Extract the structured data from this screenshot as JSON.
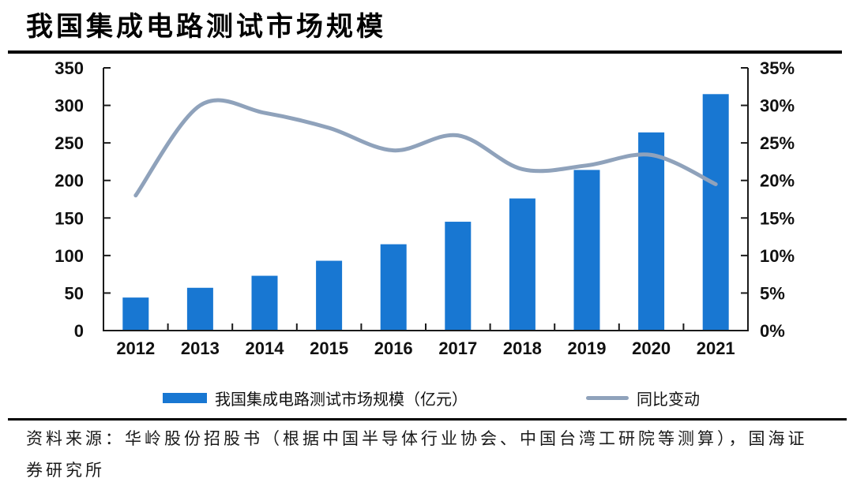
{
  "header": {
    "title": "我国集成电路测试市场规模"
  },
  "chart_data": {
    "type": "combo",
    "categories": [
      "2012",
      "2013",
      "2014",
      "2015",
      "2016",
      "2017",
      "2018",
      "2019",
      "2020",
      "2021"
    ],
    "series": [
      {
        "name": "我国集成电路测试市场规模（亿元）",
        "type": "bar",
        "axis": "left",
        "color": "#1877D2",
        "values": [
          44,
          57,
          73,
          93,
          115,
          145,
          176,
          214,
          264,
          315
        ]
      },
      {
        "name": "同比变动",
        "type": "line",
        "axis": "right",
        "color": "#8FA2BB",
        "values": [
          18,
          30,
          29,
          27,
          24,
          26,
          21.5,
          22,
          23.4,
          19.5
        ]
      }
    ],
    "left_axis": {
      "min": 0,
      "max": 350,
      "step": 50,
      "tick_labels": [
        "0",
        "50",
        "100",
        "150",
        "200",
        "250",
        "300",
        "350"
      ]
    },
    "right_axis": {
      "min": 0,
      "max": 35,
      "step": 5,
      "tick_labels": [
        "0%",
        "5%",
        "10%",
        "15%",
        "20%",
        "25%",
        "30%",
        "35%"
      ]
    },
    "grid": false,
    "legend_position": "bottom",
    "axis_color": "#1a1a1a",
    "label_color": "#111111"
  },
  "legend": {
    "items": [
      {
        "label": "我国集成电路测试市场规模（亿元）",
        "swatch": "bar",
        "color": "#1877D2"
      },
      {
        "label": "同比变动",
        "swatch": "line",
        "color": "#8FA2BB"
      }
    ]
  },
  "footer": {
    "source_line1": "资料来源：华岭股份招股书（根据中国半导体行业协会、中国台湾工研院等测算），国海证",
    "source_line2": "券研究所"
  }
}
